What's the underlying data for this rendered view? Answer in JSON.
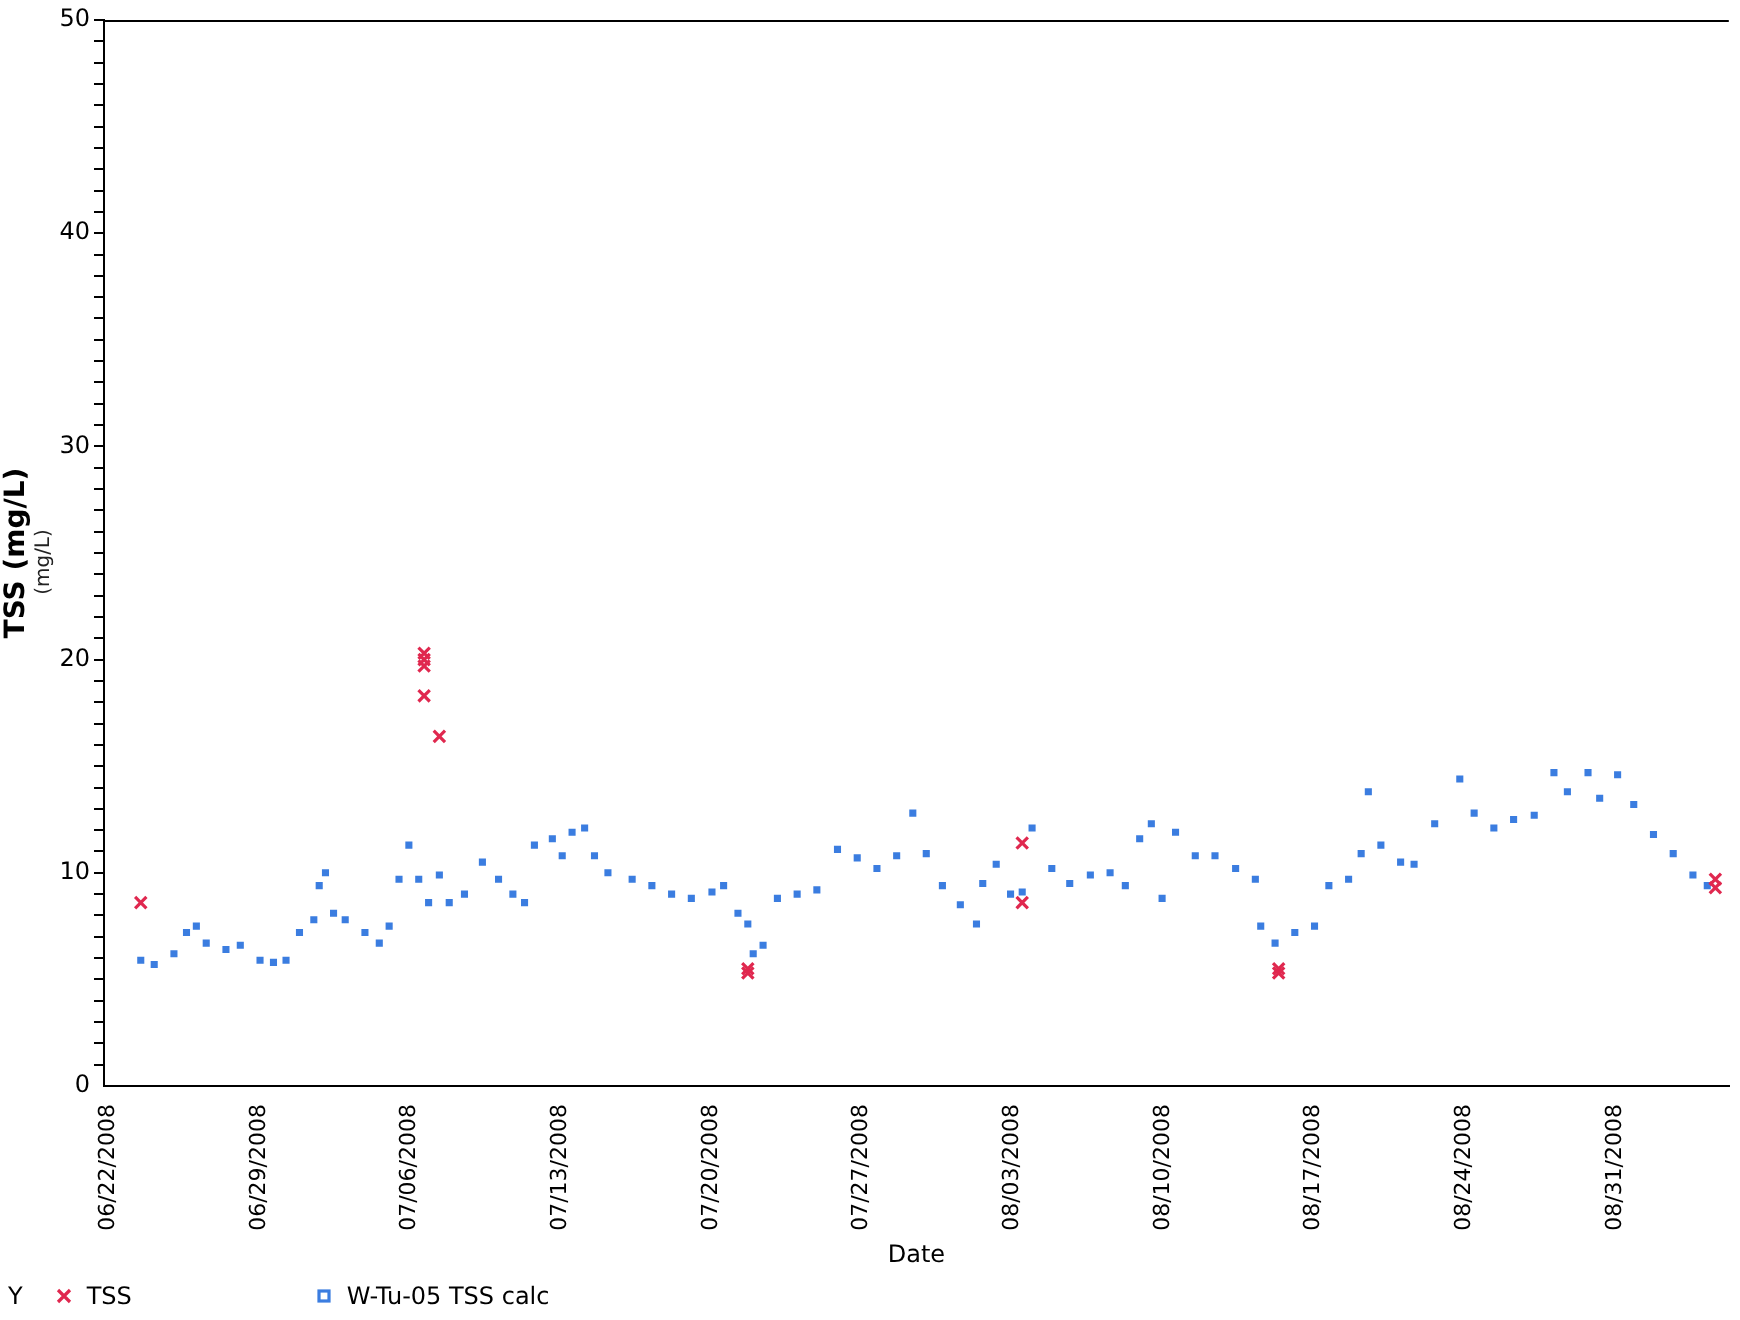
{
  "chart_data": {
    "type": "scatter",
    "xlabel": "Date",
    "ylabel": "TSS (mg/L)",
    "legend_title": "Y",
    "legend": "bottom left",
    "grid": false,
    "annotations": [
      "(mg/L)"
    ],
    "xlim": [
      "2008-06-21T19:00",
      "2008-09-05T07:00"
    ],
    "xticks": [
      {
        "value": "2008-06-22",
        "label": "06/22/2008"
      },
      {
        "value": "2008-06-29",
        "label": "06/29/2008"
      },
      {
        "value": "2008-07-06",
        "label": "07/06/2008"
      },
      {
        "value": "2008-07-13",
        "label": "07/13/2008"
      },
      {
        "value": "2008-07-20",
        "label": "07/20/2008"
      },
      {
        "value": "2008-07-27",
        "label": "07/27/2008"
      },
      {
        "value": "2008-08-03",
        "label": "08/03/2008"
      },
      {
        "value": "2008-08-10",
        "label": "08/10/2008"
      },
      {
        "value": "2008-08-17",
        "label": "08/17/2008"
      },
      {
        "value": "2008-08-24",
        "label": "08/24/2008"
      },
      {
        "value": "2008-08-31",
        "label": "08/31/2008"
      }
    ],
    "ylim": [
      0,
      50
    ],
    "yticks": [
      0,
      {
        "value": 1,
        "label": null
      },
      {
        "value": 2,
        "label": null
      },
      {
        "value": 3,
        "label": null
      },
      {
        "value": 4,
        "label": null
      },
      {
        "value": 5,
        "label": null
      },
      {
        "value": 6,
        "label": null
      },
      {
        "value": 7,
        "label": null
      },
      {
        "value": 8,
        "label": null
      },
      {
        "value": 9,
        "label": null
      },
      10,
      {
        "value": 11,
        "label": null
      },
      {
        "value": 12,
        "label": null
      },
      {
        "value": 13,
        "label": null
      },
      {
        "value": 14,
        "label": null
      },
      {
        "value": 15,
        "label": null
      },
      {
        "value": 16,
        "label": null
      },
      {
        "value": 17,
        "label": null
      },
      {
        "value": 18,
        "label": null
      },
      {
        "value": 19,
        "label": null
      },
      20,
      {
        "value": 21,
        "label": null
      },
      {
        "value": 22,
        "label": null
      },
      {
        "value": 23,
        "label": null
      },
      {
        "value": 24,
        "label": null
      },
      {
        "value": 25,
        "label": null
      },
      {
        "value": 26,
        "label": null
      },
      {
        "value": 27,
        "label": null
      },
      {
        "value": 28,
        "label": null
      },
      {
        "value": 29,
        "label": null
      },
      30,
      {
        "value": 31,
        "label": null
      },
      {
        "value": 32,
        "label": null
      },
      {
        "value": 33,
        "label": null
      },
      {
        "value": 34,
        "label": null
      },
      {
        "value": 35,
        "label": null
      },
      {
        "value": 36,
        "label": null
      },
      {
        "value": 37,
        "label": null
      },
      {
        "value": 38,
        "label": null
      },
      {
        "value": 39,
        "label": null
      },
      40,
      {
        "value": 41,
        "label": null
      },
      {
        "value": 42,
        "label": null
      },
      {
        "value": 43,
        "label": null
      },
      {
        "value": 44,
        "label": null
      },
      {
        "value": 45,
        "label": null
      },
      {
        "value": 46,
        "label": null
      },
      {
        "value": 47,
        "label": null
      },
      {
        "value": 48,
        "label": null
      },
      {
        "value": 49,
        "label": null
      },
      50
    ],
    "series": [
      {
        "name": "TSS",
        "color": "#e0284f",
        "marker": "cross",
        "x": [
          "2008-06-23T12:00",
          "2008-07-06T16:00",
          "2008-07-06T16:00",
          "2008-07-06T16:00",
          "2008-07-06T16:00",
          "2008-07-07T09:00",
          "2008-07-21T17:00",
          "2008-07-21T17:00",
          "2008-08-03T11:00",
          "2008-08-03T11:00",
          "2008-08-15T09:00",
          "2008-08-15T09:00",
          "2008-09-04T16:00",
          "2008-09-04T16:00"
        ],
        "values": [
          8.6,
          20.3,
          20.0,
          19.7,
          18.3,
          16.4,
          5.5,
          5.3,
          11.4,
          8.6,
          5.5,
          5.3,
          9.7,
          9.3
        ]
      },
      {
        "name": "W-Tu-05 TSS calc",
        "color": "#3b7de0",
        "marker": "square",
        "x": [
          "2008-06-23T12:00",
          "2008-06-24T03:00",
          "2008-06-25T01:00",
          "2008-06-25T15:00",
          "2008-06-26T02:00",
          "2008-06-26T13:00",
          "2008-06-27T11:00",
          "2008-06-28T03:00",
          "2008-06-29T01:00",
          "2008-06-29T16:00",
          "2008-06-30T06:00",
          "2008-06-30T21:00",
          "2008-07-01T13:00",
          "2008-07-01T19:00",
          "2008-07-02T02:00",
          "2008-07-02T11:00",
          "2008-07-03T00:00",
          "2008-07-03T22:00",
          "2008-07-04T14:00",
          "2008-07-05T01:00",
          "2008-07-05T12:00",
          "2008-07-05T23:00",
          "2008-07-06T10:00",
          "2008-07-06T21:00",
          "2008-07-07T09:00",
          "2008-07-07T20:00",
          "2008-07-08T13:00",
          "2008-07-09T09:00",
          "2008-07-10T03:00",
          "2008-07-10T19:00",
          "2008-07-11T08:00",
          "2008-07-11T19:00",
          "2008-07-12T15:00",
          "2008-07-13T02:00",
          "2008-07-13T13:00",
          "2008-07-14T03:00",
          "2008-07-14T14:00",
          "2008-07-15T05:00",
          "2008-07-16T08:00",
          "2008-07-17T06:00",
          "2008-07-18T04:00",
          "2008-07-19T02:00",
          "2008-07-20T01:00",
          "2008-07-20T14:00",
          "2008-07-21T06:00",
          "2008-07-21T17:00",
          "2008-07-21T23:00",
          "2008-07-22T10:00",
          "2008-07-23T02:00",
          "2008-07-24T00:00",
          "2008-07-24T22:00",
          "2008-07-25T21:00",
          "2008-07-26T19:00",
          "2008-07-27T17:00",
          "2008-07-28T15:00",
          "2008-07-29T09:00",
          "2008-07-30T00:00",
          "2008-07-30T18:00",
          "2008-07-31T14:00",
          "2008-08-01T08:00",
          "2008-08-01T15:00",
          "2008-08-02T06:00",
          "2008-08-02T22:00",
          "2008-08-03T11:00",
          "2008-08-03T22:00",
          "2008-08-04T20:00",
          "2008-08-05T16:00",
          "2008-08-06T15:00",
          "2008-08-07T13:00",
          "2008-08-08T06:00",
          "2008-08-08T22:00",
          "2008-08-09T11:00",
          "2008-08-09T23:00",
          "2008-08-10T14:00",
          "2008-08-11T12:00",
          "2008-08-12T10:00",
          "2008-08-13T09:00",
          "2008-08-14T07:00",
          "2008-08-14T13:00",
          "2008-08-15T05:00",
          "2008-08-16T03:00",
          "2008-08-17T01:00",
          "2008-08-17T17:00",
          "2008-08-18T15:00",
          "2008-08-19T05:00",
          "2008-08-19T13:00",
          "2008-08-20T03:00",
          "2008-08-21T01:00",
          "2008-08-21T16:00",
          "2008-08-22T15:00",
          "2008-08-23T19:00",
          "2008-08-24T11:00",
          "2008-08-25T09:00",
          "2008-08-26T07:00",
          "2008-08-27T06:00",
          "2008-08-28T04:00",
          "2008-08-28T19:00",
          "2008-08-29T18:00",
          "2008-08-30T07:00",
          "2008-08-31T03:00",
          "2008-08-31T21:00",
          "2008-09-01T19:00",
          "2008-09-02T17:00",
          "2008-09-03T15:00",
          "2008-09-04T07:00"
        ],
        "values": [
          5.9,
          5.7,
          6.2,
          7.2,
          7.5,
          6.7,
          6.4,
          6.6,
          5.9,
          5.8,
          5.9,
          7.2,
          7.8,
          9.4,
          10.0,
          8.1,
          7.8,
          7.2,
          6.7,
          7.5,
          9.7,
          11.3,
          9.7,
          8.6,
          9.9,
          8.6,
          9.0,
          10.5,
          9.7,
          9.0,
          8.6,
          11.3,
          11.6,
          10.8,
          11.9,
          12.1,
          10.8,
          10.0,
          9.7,
          9.4,
          9.0,
          8.8,
          9.1,
          9.4,
          8.1,
          7.6,
          6.2,
          6.6,
          8.8,
          9.0,
          9.2,
          11.1,
          10.7,
          10.2,
          10.8,
          12.8,
          10.9,
          9.4,
          8.5,
          7.6,
          9.5,
          10.4,
          9.0,
          9.1,
          12.1,
          10.2,
          9.5,
          9.9,
          10.0,
          9.4,
          11.6,
          12.3,
          8.8,
          11.9,
          10.8,
          10.8,
          10.2,
          9.7,
          7.5,
          6.7,
          7.2,
          7.5,
          9.4,
          9.7,
          10.9,
          13.8,
          11.3,
          10.5,
          10.4,
          12.3,
          14.4,
          12.8,
          12.1,
          12.5,
          12.7,
          14.7,
          13.8,
          14.7,
          13.5,
          14.6,
          13.2,
          11.8,
          10.9,
          9.9,
          9.4
        ]
      }
    ]
  }
}
